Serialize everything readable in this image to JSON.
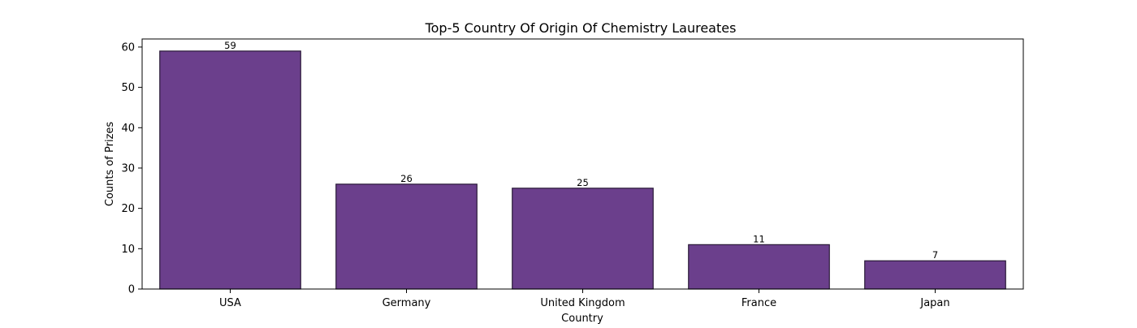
{
  "chart_data": {
    "type": "bar",
    "title": "Top-5 Country Of Origin Of Chemistry Laureates",
    "xlabel": "Country",
    "ylabel": "Counts of Prizes",
    "categories": [
      "USA",
      "Germany",
      "United Kingdom",
      "France",
      "Japan"
    ],
    "values": [
      59,
      26,
      25,
      11,
      7
    ],
    "data_labels": [
      "59",
      "26",
      "25",
      "11",
      "7"
    ],
    "ylim": [
      0,
      62
    ],
    "yticks": [
      0,
      10,
      20,
      30,
      40,
      50,
      60
    ],
    "grid": false,
    "legend": "none",
    "bar_color": "#6b3f8c",
    "bar_edge_color": "#2a1a38"
  }
}
